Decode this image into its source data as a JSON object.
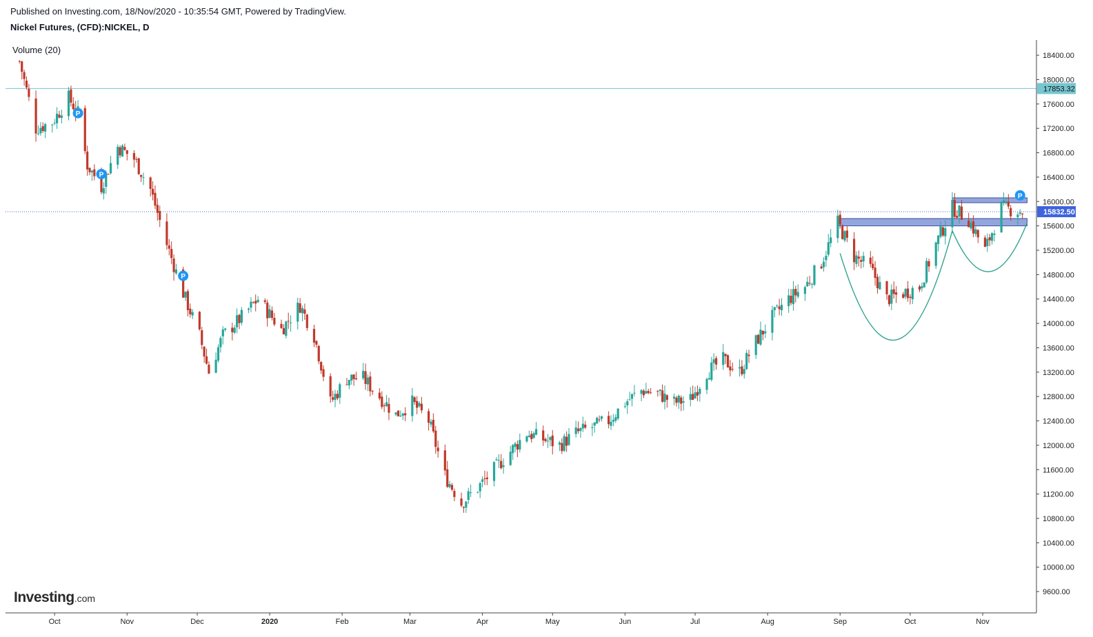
{
  "header": {
    "published": "Published on Investing.com, 18/Nov/2020 - 10:35:54 GMT, Powered by TradingView.",
    "symbol": "Nickel Futures, (CFD):NICKEL, D"
  },
  "indicator": {
    "label": "Volume (20)"
  },
  "logo": {
    "main": "Investing",
    "suffix": ".com"
  },
  "colors": {
    "up": "#26a69a",
    "down": "#c0392b",
    "zone": "#6f87cf",
    "resistance": "#76c7d1",
    "price_line": "#3d63dd",
    "cup": "#2fa38f",
    "marker": "#2196f3"
  },
  "chart_data": {
    "type": "candlestick",
    "yaxis_ticks": [
      18400,
      18000,
      17600,
      17200,
      16800,
      16400,
      16000,
      15600,
      15200,
      14800,
      14400,
      14000,
      13600,
      13200,
      12800,
      12400,
      12000,
      11600,
      11200,
      10800,
      10400,
      10000,
      9600
    ],
    "ylim": [
      9250,
      18650
    ],
    "xaxis_ticks": [
      "Oct",
      "Nov",
      "Dec",
      "2020",
      "Feb",
      "Mar",
      "Apr",
      "May",
      "Jun",
      "Jul",
      "Aug",
      "Sep",
      "Oct",
      "Nov"
    ],
    "resistance_label": "17853.32",
    "resistance_value": 17853.32,
    "last_price_label": "15832.50",
    "last_price_value": 15832.5,
    "marker_label": "P",
    "zones": [
      {
        "from": "2020-08-31",
        "to": "2020-11-20",
        "low": 15600,
        "high": 15720
      },
      {
        "from": "2020-10-19",
        "to": "2020-11-20",
        "low": 15980,
        "high": 16060
      }
    ],
    "cup_pattern": [
      {
        "from": "2020-09-01",
        "to": "2020-10-19",
        "left": 15150,
        "bottom": 13730,
        "right": 15520
      },
      {
        "from": "2020-10-19",
        "to": "2020-11-20",
        "left": 15520,
        "bottom": 14850,
        "right": 15650
      }
    ],
    "markers": [
      {
        "date": "2019-10-11",
        "price": 17450
      },
      {
        "date": "2019-10-21",
        "price": 16450
      },
      {
        "date": "2019-11-25",
        "price": 14780
      },
      {
        "date": "2020-11-17",
        "price": 16100
      }
    ],
    "price_path": [
      [
        "2019-09-16",
        18300
      ],
      [
        "2019-09-23",
        17200
      ],
      [
        "2019-09-30",
        17300
      ],
      [
        "2019-10-07",
        17700
      ],
      [
        "2019-10-11",
        17450
      ],
      [
        "2019-10-15",
        16600
      ],
      [
        "2019-10-21",
        16250
      ],
      [
        "2019-10-28",
        16900
      ],
      [
        "2019-11-04",
        16700
      ],
      [
        "2019-11-11",
        16200
      ],
      [
        "2019-11-18",
        15300
      ],
      [
        "2019-11-25",
        14500
      ],
      [
        "2019-12-02",
        13800
      ],
      [
        "2019-12-06",
        13200
      ],
      [
        "2019-12-12",
        13800
      ],
      [
        "2019-12-20",
        14100
      ],
      [
        "2019-12-27",
        14400
      ],
      [
        "2020-01-06",
        13900
      ],
      [
        "2020-01-14",
        14300
      ],
      [
        "2020-01-20",
        13800
      ],
      [
        "2020-01-27",
        12700
      ],
      [
        "2020-02-03",
        13100
      ],
      [
        "2020-02-10",
        13100
      ],
      [
        "2020-02-17",
        12800
      ],
      [
        "2020-02-24",
        12500
      ],
      [
        "2020-03-02",
        12700
      ],
      [
        "2020-03-09",
        12400
      ],
      [
        "2020-03-16",
        11500
      ],
      [
        "2020-03-23",
        11050
      ],
      [
        "2020-03-30",
        11300
      ],
      [
        "2020-04-06",
        11600
      ],
      [
        "2020-04-13",
        11900
      ],
      [
        "2020-04-20",
        12200
      ],
      [
        "2020-04-27",
        12100
      ],
      [
        "2020-05-04",
        12000
      ],
      [
        "2020-05-11",
        12200
      ],
      [
        "2020-05-18",
        12300
      ],
      [
        "2020-05-25",
        12400
      ],
      [
        "2020-06-01",
        12700
      ],
      [
        "2020-06-08",
        12900
      ],
      [
        "2020-06-15",
        12850
      ],
      [
        "2020-06-22",
        12700
      ],
      [
        "2020-06-29",
        12750
      ],
      [
        "2020-07-06",
        13200
      ],
      [
        "2020-07-13",
        13400
      ],
      [
        "2020-07-20",
        13200
      ],
      [
        "2020-07-27",
        13700
      ],
      [
        "2020-08-03",
        14100
      ],
      [
        "2020-08-10",
        14400
      ],
      [
        "2020-08-17",
        14600
      ],
      [
        "2020-08-24",
        15000
      ],
      [
        "2020-08-31",
        15650
      ],
      [
        "2020-09-07",
        15100
      ],
      [
        "2020-09-14",
        14900
      ],
      [
        "2020-09-21",
        14400
      ],
      [
        "2020-09-28",
        14500
      ],
      [
        "2020-10-05",
        14600
      ],
      [
        "2020-10-12",
        15300
      ],
      [
        "2020-10-19",
        15900
      ],
      [
        "2020-10-26",
        15700
      ],
      [
        "2020-11-02",
        15200
      ],
      [
        "2020-11-09",
        15900
      ],
      [
        "2020-11-18",
        15832
      ]
    ]
  }
}
